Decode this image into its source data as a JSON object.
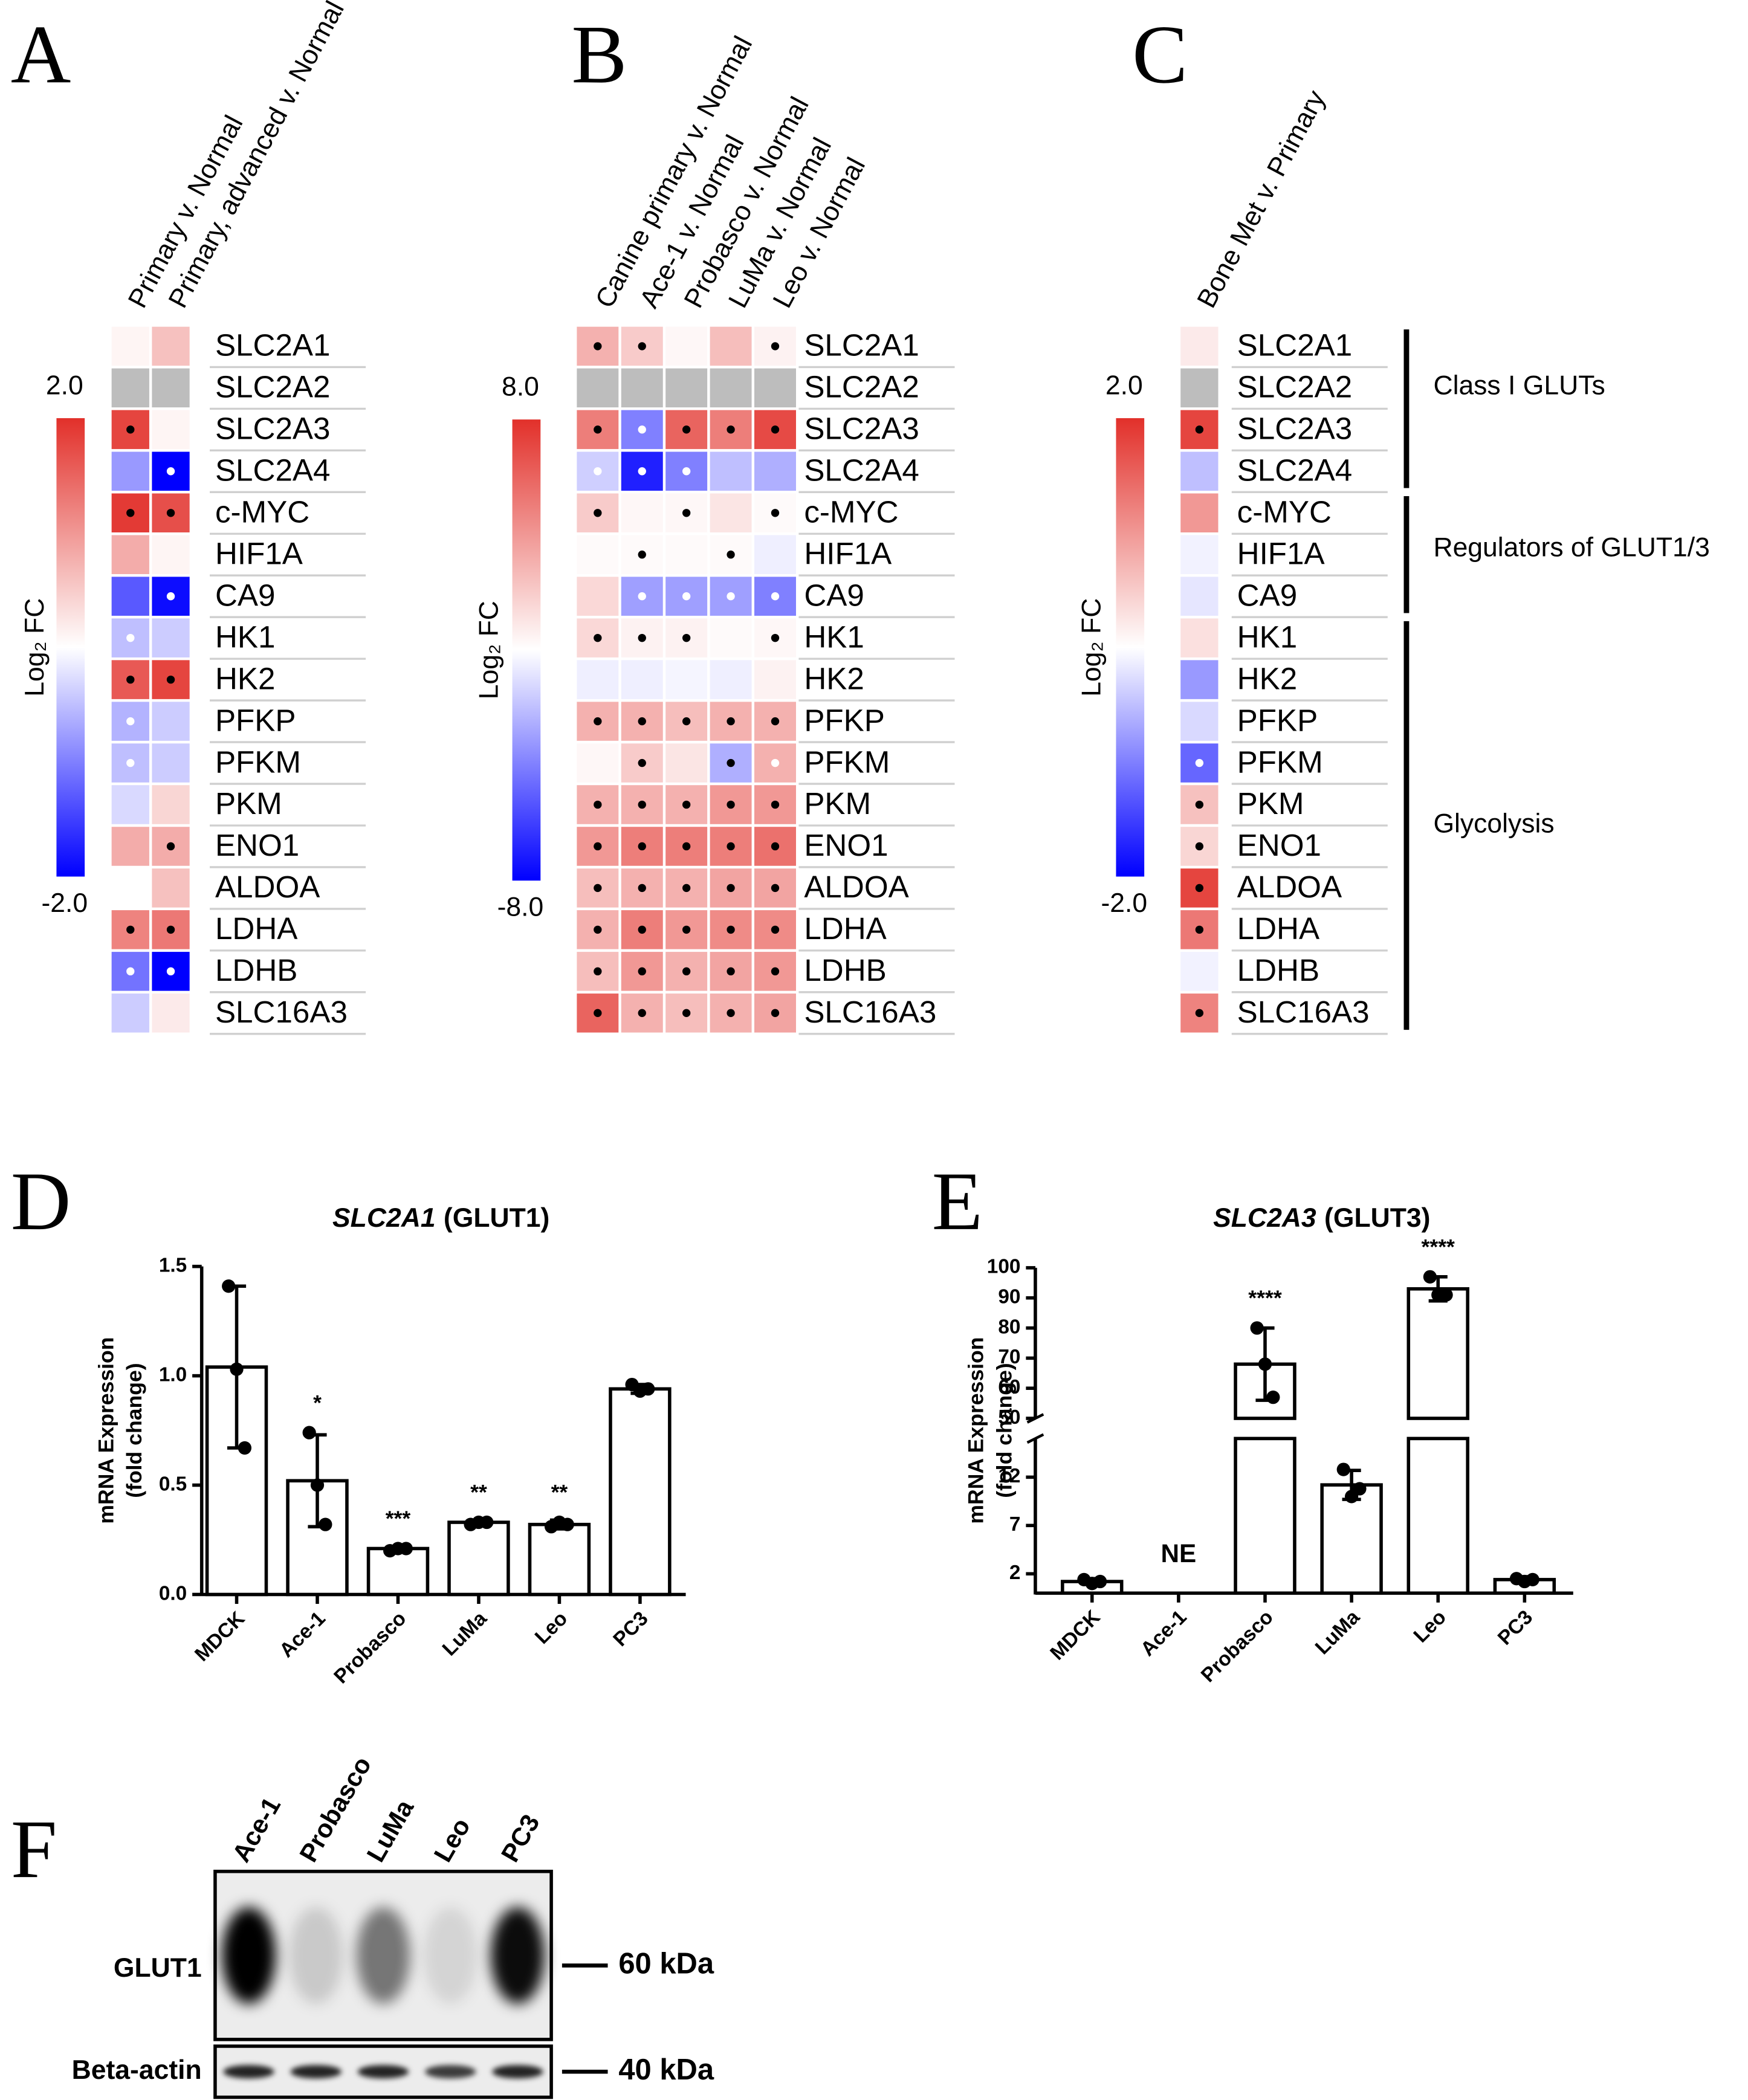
{
  "chart_data": [
    {
      "type": "heatmap",
      "panel": "A",
      "columns": [
        "Primary v. Normal",
        "Primary, advanced v. Normal"
      ],
      "rows": [
        "SLC2A1",
        "SLC2A2",
        "SLC2A3",
        "SLC2A4",
        "c-MYC",
        "HIF1A",
        "CA9",
        "HK1",
        "HK2",
        "PFKP",
        "PFKM",
        "PKM",
        "ENO1",
        "ALDOA",
        "LDHA",
        "LDHB",
        "SLC16A3"
      ],
      "values": [
        [
          0.1,
          0.6
        ],
        [
          null,
          null
        ],
        [
          1.8,
          0.1
        ],
        [
          -0.8,
          -2.0
        ],
        [
          1.9,
          1.7
        ],
        [
          0.8,
          0.1
        ],
        [
          -1.3,
          -1.9
        ],
        [
          -0.5,
          -0.4
        ],
        [
          1.6,
          1.8
        ],
        [
          -0.6,
          -0.4
        ],
        [
          -0.5,
          -0.4
        ],
        [
          -0.3,
          0.4
        ],
        [
          0.8,
          0.8
        ],
        [
          0.0,
          0.6
        ],
        [
          1.2,
          1.3
        ],
        [
          -1.1,
          -2.0
        ],
        [
          -0.4,
          0.2
        ]
      ],
      "dots": [
        [
          null,
          null
        ],
        [
          null,
          null
        ],
        [
          "#000000",
          null
        ],
        [
          null,
          "#ffffff"
        ],
        [
          "#000000",
          "#000000"
        ],
        [
          null,
          null
        ],
        [
          null,
          "#ffffff"
        ],
        [
          "#ffffff",
          null
        ],
        [
          "#000000",
          "#000000"
        ],
        [
          "#ffffff",
          null
        ],
        [
          "#ffffff",
          null
        ],
        [
          null,
          null
        ],
        [
          null,
          "#000000"
        ],
        [
          null,
          null
        ],
        [
          "#000000",
          "#000000"
        ],
        [
          "#ffffff",
          "#ffffff"
        ],
        [
          null,
          null
        ]
      ],
      "clim": [
        -2,
        2
      ],
      "cticks": [
        {
          "value": 2,
          "label": "2.0"
        },
        {
          "value": -2,
          "label": "-2.0"
        }
      ],
      "clabel": "Log₂ FC",
      "colormap": [
        "#0000ff",
        "#ffffff",
        "#e2302a"
      ],
      "nan_color": "#bdbdbd"
    },
    {
      "type": "heatmap",
      "panel": "B",
      "columns": [
        "Canine primary v. Normal",
        "Ace-1 v. Normal",
        "Probasco v. Normal",
        "LuMa v. Normal",
        "Leo v. Normal"
      ],
      "rows": [
        "SLC2A1",
        "SLC2A2",
        "SLC2A3",
        "SLC2A4",
        "c-MYC",
        "HIF1A",
        "CA9",
        "HK1",
        "HK2",
        "PFKP",
        "PFKM",
        "PKM",
        "ENO1",
        "ALDOA",
        "LDHA",
        "LDHB",
        "SLC16A3"
      ],
      "values": [
        [
          3,
          2,
          0.3,
          2.5,
          0.5
        ],
        [
          null,
          null,
          null,
          null,
          null
        ],
        [
          5,
          -4,
          6,
          5,
          7
        ],
        [
          -1.5,
          -7,
          -4,
          -2,
          -2.5
        ],
        [
          2,
          0.3,
          0.3,
          1,
          0.2
        ],
        [
          0.2,
          0.2,
          0.2,
          0.2,
          -0.5
        ],
        [
          1.5,
          -3,
          -3,
          -3,
          -4
        ],
        [
          1.5,
          0.5,
          0.5,
          0.2,
          0.3
        ],
        [
          -0.5,
          -0.5,
          -0.3,
          -0.5,
          0.5
        ],
        [
          3,
          3,
          2.5,
          3,
          3
        ],
        [
          0.3,
          2,
          1,
          -2.5,
          3
        ],
        [
          3,
          3,
          3,
          4,
          4
        ],
        [
          4,
          5,
          5,
          5,
          5.5
        ],
        [
          2.5,
          3,
          3,
          3.5,
          3.5
        ],
        [
          3,
          5,
          4,
          4.5,
          4.5
        ],
        [
          2.5,
          4,
          3,
          3.5,
          4
        ],
        [
          6,
          3,
          2.5,
          3,
          3.5
        ]
      ],
      "dots": [
        [
          "#000000",
          "#000000",
          null,
          null,
          "#000000"
        ],
        [
          null,
          null,
          null,
          null,
          null
        ],
        [
          "#000000",
          "#ffffff",
          "#000000",
          "#000000",
          "#000000"
        ],
        [
          "#ffffff",
          "#ffffff",
          "#ffffff",
          null,
          null
        ],
        [
          "#000000",
          null,
          "#000000",
          null,
          "#000000"
        ],
        [
          null,
          "#000000",
          null,
          "#000000",
          null
        ],
        [
          null,
          "#ffffff",
          "#ffffff",
          "#ffffff",
          "#ffffff"
        ],
        [
          "#000000",
          "#000000",
          "#000000",
          null,
          "#000000"
        ],
        [
          null,
          null,
          null,
          null,
          null
        ],
        [
          "#000000",
          "#000000",
          "#000000",
          "#000000",
          "#000000"
        ],
        [
          null,
          "#000000",
          null,
          "#000000",
          "#ffffff"
        ],
        [
          "#000000",
          "#000000",
          "#000000",
          "#000000",
          "#000000"
        ],
        [
          "#000000",
          "#000000",
          "#000000",
          "#000000",
          "#000000"
        ],
        [
          "#000000",
          "#000000",
          "#000000",
          "#000000",
          "#000000"
        ],
        [
          "#000000",
          "#000000",
          "#000000",
          "#000000",
          "#000000"
        ],
        [
          "#000000",
          "#000000",
          "#000000",
          "#000000",
          "#000000"
        ],
        [
          "#000000",
          "#000000",
          "#000000",
          "#000000",
          "#000000"
        ]
      ],
      "clim": [
        -8,
        8
      ],
      "cticks": [
        {
          "value": 8,
          "label": "8.0"
        },
        {
          "value": -8,
          "label": "-8.0"
        }
      ],
      "clabel": "Log₂ FC",
      "colormap": [
        "#0000ff",
        "#ffffff",
        "#e2302a"
      ],
      "nan_color": "#bdbdbd"
    },
    {
      "type": "heatmap",
      "panel": "C",
      "columns": [
        "Bone Met v. Primary"
      ],
      "rows": [
        "SLC2A1",
        "SLC2A2",
        "SLC2A3",
        "SLC2A4",
        "c-MYC",
        "HIF1A",
        "CA9",
        "HK1",
        "HK2",
        "PFKP",
        "PFKM",
        "PKM",
        "ENO1",
        "ALDOA",
        "LDHA",
        "LDHB",
        "SLC16A3"
      ],
      "values": [
        [
          0.2
        ],
        [
          null
        ],
        [
          1.8
        ],
        [
          -0.5
        ],
        [
          1.0
        ],
        [
          -0.1
        ],
        [
          -0.2
        ],
        [
          0.3
        ],
        [
          -0.8
        ],
        [
          -0.3
        ],
        [
          -1.2
        ],
        [
          0.6
        ],
        [
          0.4
        ],
        [
          1.8
        ],
        [
          1.3
        ],
        [
          -0.1
        ],
        [
          1.2
        ]
      ],
      "dots": [
        [
          null
        ],
        [
          null
        ],
        [
          "#000000"
        ],
        [
          null
        ],
        [
          null
        ],
        [
          null
        ],
        [
          null
        ],
        [
          null
        ],
        [
          null
        ],
        [
          null
        ],
        [
          "#ffffff"
        ],
        [
          "#000000"
        ],
        [
          "#000000"
        ],
        [
          "#000000"
        ],
        [
          "#000000"
        ],
        [
          null
        ],
        [
          "#000000"
        ]
      ],
      "groups": [
        {
          "label": "Class I GLUTs",
          "rows": [
            0,
            3
          ]
        },
        {
          "label": "Regulators of GLUT1/3",
          "rows": [
            4,
            6
          ]
        },
        {
          "label": "Glycolysis",
          "rows": [
            7,
            16
          ]
        }
      ],
      "clim": [
        -2,
        2
      ],
      "cticks": [
        {
          "value": 2,
          "label": "2.0"
        },
        {
          "value": -2,
          "label": "-2.0"
        }
      ],
      "clabel": "Log₂ FC",
      "colormap": [
        "#0000ff",
        "#ffffff",
        "#e2302a"
      ],
      "nan_color": "#bdbdbd"
    },
    {
      "type": "bar",
      "panel": "D",
      "title": [
        "SLC2A1",
        "(GLUT1)"
      ],
      "ylabel": [
        "mRNA Expression",
        "(fold change)"
      ],
      "categories": [
        "MDCK",
        "Ace-1",
        "Probasco",
        "LuMa",
        "Leo",
        "PC3"
      ],
      "values": [
        1.04,
        0.52,
        0.21,
        0.33,
        0.32,
        0.94
      ],
      "errors": [
        0.37,
        0.21,
        0.01,
        0.01,
        0.02,
        0.02
      ],
      "points": [
        [
          1.41,
          1.03,
          0.67
        ],
        [
          0.74,
          0.5,
          0.32
        ],
        [
          0.2,
          0.21,
          0.21
        ],
        [
          0.32,
          0.33,
          0.33
        ],
        [
          0.31,
          0.33,
          0.32
        ],
        [
          0.96,
          0.93,
          0.94
        ]
      ],
      "annotations": [
        null,
        "*",
        "***",
        "**",
        "**",
        null
      ],
      "ylim": [
        0,
        1.5
      ],
      "yticks": [
        {
          "value": 0,
          "label": "0.0"
        },
        {
          "value": 0.5,
          "label": "0.5"
        },
        {
          "value": 1,
          "label": "1.0"
        },
        {
          "value": 1.5,
          "label": "1.5"
        }
      ],
      "color": "#ffffff",
      "edge_color": "#000000"
    },
    {
      "type": "broken_bar",
      "panel": "E",
      "title": [
        "SLC2A3",
        "(GLUT3)"
      ],
      "ylabel": [
        "mRNA Expression",
        "(fold change)"
      ],
      "categories": [
        "MDCK",
        "Ace-1",
        "Probasco",
        "LuMa",
        "Leo",
        "PC3"
      ],
      "values": [
        1.2,
        null,
        68,
        11.2,
        93,
        1.4
      ],
      "errors": [
        0.3,
        null,
        12,
        1.5,
        4,
        0.3
      ],
      "points": [
        [
          1.4,
          1.0,
          1.2
        ],
        null,
        [
          80,
          68,
          57
        ],
        [
          12.8,
          10,
          10.8
        ],
        [
          97,
          91,
          91
        ],
        [
          1.5,
          1.2,
          1.4
        ]
      ],
      "annotations": [
        null,
        "NE",
        "****",
        null,
        "****",
        null
      ],
      "axis_segments": [
        {
          "ylim": [
            0,
            16
          ],
          "yticks": [
            2,
            7,
            12
          ]
        },
        {
          "ylim": [
            50,
            100
          ],
          "yticks": [
            50,
            60,
            70,
            80,
            90,
            100
          ]
        }
      ],
      "color": "#ffffff",
      "edge_color": "#000000"
    },
    {
      "type": "blot",
      "panel": "F",
      "lanes": [
        "Ace-1",
        "Probasco",
        "LuMa",
        "Leo",
        "PC3"
      ],
      "bands": [
        {
          "name": "GLUT1",
          "marker": "60 kDa",
          "intensity": [
            1.0,
            0.15,
            0.5,
            0.1,
            0.95
          ]
        },
        {
          "name": "Beta-actin",
          "marker": "40 kDa",
          "intensity": [
            0.85,
            0.85,
            0.85,
            0.75,
            0.85
          ]
        }
      ]
    }
  ]
}
